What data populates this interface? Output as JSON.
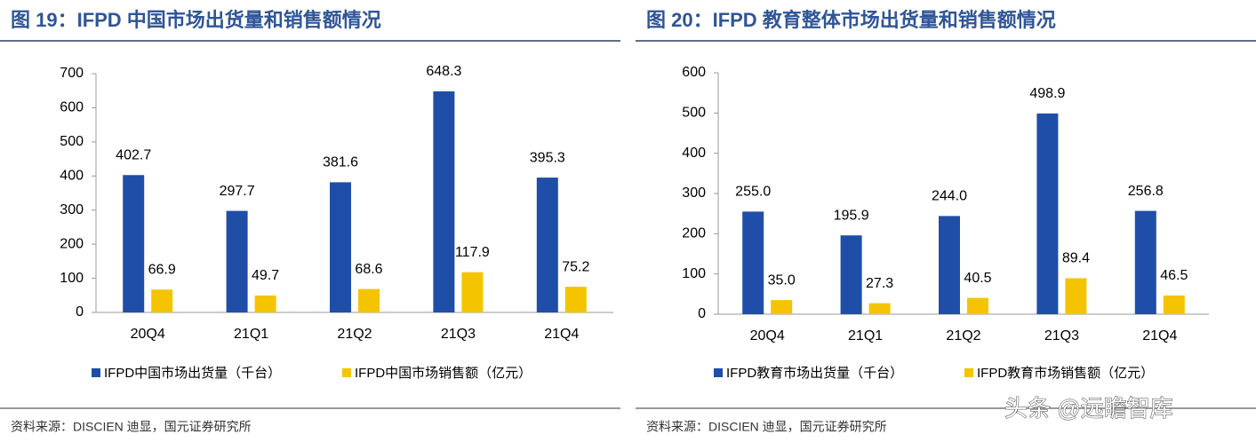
{
  "chart_data": [
    {
      "type": "bar",
      "title": "图 19：IFPD 中国市场出货量和销售额情况",
      "categories": [
        "20Q4",
        "21Q1",
        "21Q2",
        "21Q3",
        "21Q4"
      ],
      "series": [
        {
          "name": "IFPD中国市场出货量（千台）",
          "color": "#1f4ea8",
          "values": [
            402.7,
            297.7,
            381.6,
            648.3,
            395.3
          ]
        },
        {
          "name": "IFPD中国市场销售额（亿元）",
          "color": "#f5c400",
          "values": [
            66.9,
            49.7,
            68.6,
            117.9,
            75.2
          ]
        }
      ],
      "ylim": [
        0,
        700
      ],
      "yticks": [
        0,
        100,
        200,
        300,
        400,
        500,
        600,
        700
      ],
      "source": "资料来源：DISCIEN 迪显，国元证券研究所"
    },
    {
      "type": "bar",
      "title": "图 20：IFPD 教育整体市场出货量和销售额情况",
      "categories": [
        "20Q4",
        "21Q1",
        "21Q2",
        "21Q3",
        "21Q4"
      ],
      "series": [
        {
          "name": "IFPD教育市场出货量（千台）",
          "color": "#1f4ea8",
          "values": [
            255.0,
            195.9,
            244.0,
            498.9,
            256.8
          ],
          "value_labels": [
            "255.0",
            "195.9",
            "244.0",
            "498.9",
            "256.8"
          ]
        },
        {
          "name": "IFPD教育市场销售额（亿元）",
          "color": "#f5c400",
          "values": [
            35.0,
            27.3,
            40.5,
            89.4,
            46.5
          ],
          "value_labels": [
            "35.0",
            "27.3",
            "40.5",
            "89.4",
            "46.5"
          ]
        }
      ],
      "ylim": [
        0,
        600
      ],
      "yticks": [
        0,
        100,
        200,
        300,
        400,
        500,
        600
      ],
      "source": "资料来源：DISCIEN 迪显，国元证券研究所"
    }
  ],
  "watermark": "头条 @远瞻智库"
}
